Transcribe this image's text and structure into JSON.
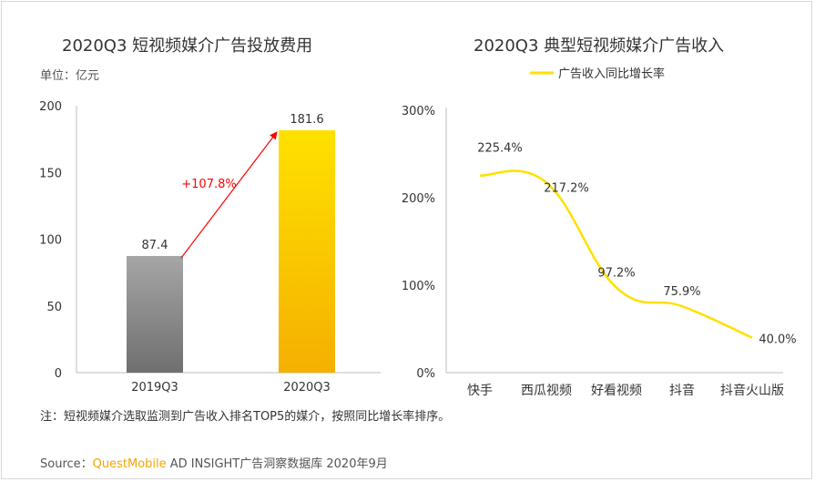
{
  "left_chart_title": "2020Q3 短视频媒介广告投放费用",
  "right_chart_title": "2020Q3 典型短视频媒介广告收入",
  "unit_label": "单位：亿元",
  "note": "注：短视频媒介选取监测到广告收入排名TOP5的媒介，按照同比增长率排序。",
  "source": {
    "prefix": "Source：",
    "brand": "QuestMobile",
    "suffix": " AD INSIGHT广告洞察数据库 2020年9月"
  },
  "colors": {
    "bar_2019": "#8c8c8c",
    "bar_2020": "#ffc000",
    "growth_arrow": "#ff0000",
    "line": "#ffe000"
  },
  "chart_data": [
    {
      "type": "bar",
      "title": "2020Q3 短视频媒介广告投放费用",
      "unit": "单位：亿元",
      "categories": [
        "2019Q3",
        "2020Q3"
      ],
      "values": [
        87.4,
        181.6
      ],
      "value_labels": [
        "87.4",
        "181.6"
      ],
      "ylim": [
        0,
        200
      ],
      "yticks": [
        0,
        50,
        100,
        150,
        200
      ],
      "ytick_labels": [
        "0",
        "50",
        "100",
        "150",
        "200"
      ],
      "growth_label": "+107.8%",
      "grid": false
    },
    {
      "type": "line",
      "title": "2020Q3 典型短视频媒介广告收入",
      "categories": [
        "快手",
        "西瓜视频",
        "好看视频",
        "抖音",
        "抖音火山版"
      ],
      "series": [
        {
          "name": "广告收入同比增长率",
          "values": [
            225.4,
            217.2,
            97.2,
            75.9,
            40.0
          ],
          "value_labels": [
            "225.4%",
            "217.2%",
            "97.2%",
            "75.9%",
            "40.0%"
          ]
        }
      ],
      "ylim": [
        0,
        300
      ],
      "yticks": [
        0,
        100,
        200,
        300
      ],
      "ytick_labels": [
        "0%",
        "100%",
        "200%",
        "300%"
      ],
      "legend": "top",
      "grid": false
    }
  ]
}
